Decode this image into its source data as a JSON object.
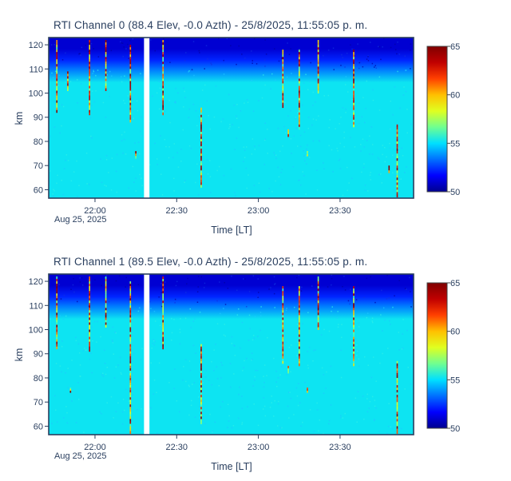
{
  "colors": {
    "text": "#2a3f5f",
    "frame": "#2a3f5f",
    "background": "#ffffff",
    "colorscale": [
      "#00008f",
      "#0000ff",
      "#0070ff",
      "#00e0ff",
      "#70ff90",
      "#e0ff20",
      "#ffc000",
      "#ff4000",
      "#c00000",
      "#800000"
    ]
  },
  "chart_data": [
    {
      "type": "heatmap",
      "title": "RTI  Channel 0 (88.4 Elev,  -0.0 Azth) - 25/8/2025, 11:55:05 p. m.",
      "xlabel": "Time [LT]",
      "ylabel": "km",
      "x_ticks": [
        "22:00",
        "22:30",
        "23:00",
        "23:30"
      ],
      "x_tick_date": "Aug 25, 2025",
      "y_ticks": [
        60,
        70,
        80,
        90,
        100,
        110,
        120
      ],
      "ylim": [
        56.5,
        123
      ],
      "colorbar": {
        "min": 50,
        "max": 65,
        "ticks": [
          50,
          55,
          60,
          65
        ]
      },
      "data_gap": [
        "22:18",
        "22:20"
      ],
      "noise_level_low_altitude": 55.2,
      "noise_level_high_altitude": 51.0,
      "spikes": [
        [
          "21:46",
          92,
          122
        ],
        [
          "21:50",
          101,
          109
        ],
        [
          "21:58",
          91,
          122
        ],
        [
          "22:04",
          101,
          122
        ],
        [
          "22:13",
          88,
          120
        ],
        [
          "22:15",
          73,
          76
        ],
        [
          "22:25",
          91,
          122
        ],
        [
          "22:39",
          61,
          94
        ],
        [
          "23:09",
          94,
          118
        ],
        [
          "23:11",
          82,
          85
        ],
        [
          "23:15",
          85,
          118
        ],
        [
          "23:18",
          74,
          76
        ],
        [
          "23:22",
          100,
          122
        ],
        [
          "23:35",
          86,
          118
        ],
        [
          "23:48",
          67,
          70
        ],
        [
          "23:51",
          57,
          87
        ]
      ]
    },
    {
      "type": "heatmap",
      "title": "RTI  Channel 1 (89.5 Elev,  -0.0 Azth) - 25/8/2025, 11:55:05 p. m.",
      "xlabel": "Time [LT]",
      "ylabel": "km",
      "x_ticks": [
        "22:00",
        "22:30",
        "23:00",
        "23:30"
      ],
      "x_tick_date": "Aug 25, 2025",
      "y_ticks": [
        60,
        70,
        80,
        90,
        100,
        110,
        120
      ],
      "ylim": [
        56.5,
        123
      ],
      "colorbar": {
        "min": 50,
        "max": 65,
        "ticks": [
          50,
          55,
          60,
          65
        ]
      },
      "data_gap": [
        "22:18",
        "22:20"
      ],
      "noise_level_low_altitude": 55.2,
      "noise_level_high_altitude": 51.0,
      "spikes": [
        [
          "21:46",
          92,
          122
        ],
        [
          "21:51",
          74,
          76
        ],
        [
          "21:58",
          91,
          122
        ],
        [
          "22:04",
          101,
          122
        ],
        [
          "22:13",
          57,
          120
        ],
        [
          "22:25",
          92,
          122
        ],
        [
          "22:39",
          61,
          94
        ],
        [
          "23:09",
          86,
          118
        ],
        [
          "23:11",
          82,
          85
        ],
        [
          "23:15",
          85,
          118
        ],
        [
          "23:18",
          74,
          76
        ],
        [
          "23:22",
          100,
          122
        ],
        [
          "23:35",
          85,
          118
        ],
        [
          "23:51",
          57,
          87
        ]
      ]
    }
  ]
}
